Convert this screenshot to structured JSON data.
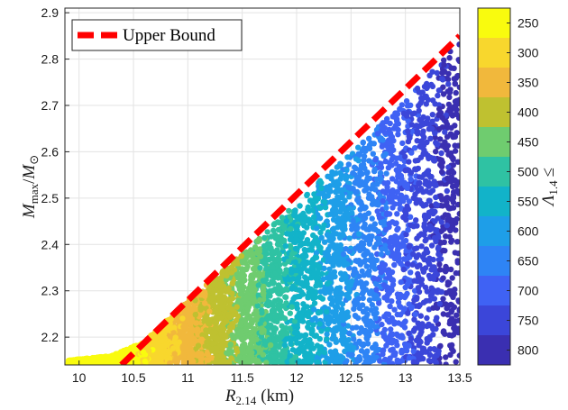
{
  "chart_data": {
    "type": "scatter",
    "title": "",
    "xlabel": {
      "base": "R",
      "sub": "2.14",
      "unit": "(km)"
    },
    "ylabel": {
      "base": "M",
      "sub_max": "max",
      "sep": "/",
      "base2": "M",
      "sub_sun": "⊙"
    },
    "xlim": [
      9.87,
      13.5
    ],
    "ylim": [
      2.14,
      2.91
    ],
    "x_ticks": [
      "10",
      "10.5",
      "11",
      "11.5",
      "12",
      "12.5",
      "13",
      "13.5"
    ],
    "y_ticks": [
      "2.2",
      "2.3",
      "2.4",
      "2.5",
      "2.6",
      "2.7",
      "2.8",
      "2.9"
    ],
    "grid": true,
    "legend": {
      "position": "top-left",
      "label": "Upper Bound",
      "color": "#ff0000",
      "style": "dashed"
    },
    "upper_bound_line": {
      "x": [
        10.39,
        13.5
      ],
      "y": [
        2.14,
        2.85
      ]
    },
    "scatter_description": {
      "lower_edge_x": [
        9.9,
        10.3,
        10.6,
        11.0,
        11.5,
        12.0,
        12.5,
        13.0,
        13.5
      ],
      "lower_edge_y": [
        2.14,
        2.15,
        2.18,
        2.27,
        2.37,
        2.48,
        2.59,
        2.7,
        2.83
      ]
    },
    "colorbar": {
      "label": {
        "base": "Λ",
        "sub": "1.4",
        "suffix": "≤"
      },
      "ticks": [
        "250",
        "300",
        "350",
        "400",
        "450",
        "500",
        "550",
        "600",
        "650",
        "700",
        "750",
        "800"
      ],
      "colors": [
        "#f9fb0e",
        "#f8d72d",
        "#f1b83c",
        "#bfc130",
        "#6fcc6f",
        "#2fc2a3",
        "#12b3c9",
        "#1e9ee8",
        "#2e84f5",
        "#3f62f4",
        "#3b46d9",
        "#3a2fb1"
      ]
    },
    "colorbar_value_bands": [
      225,
      275,
      325,
      375,
      425,
      475,
      525,
      575,
      625,
      675,
      725,
      775,
      825
    ]
  }
}
